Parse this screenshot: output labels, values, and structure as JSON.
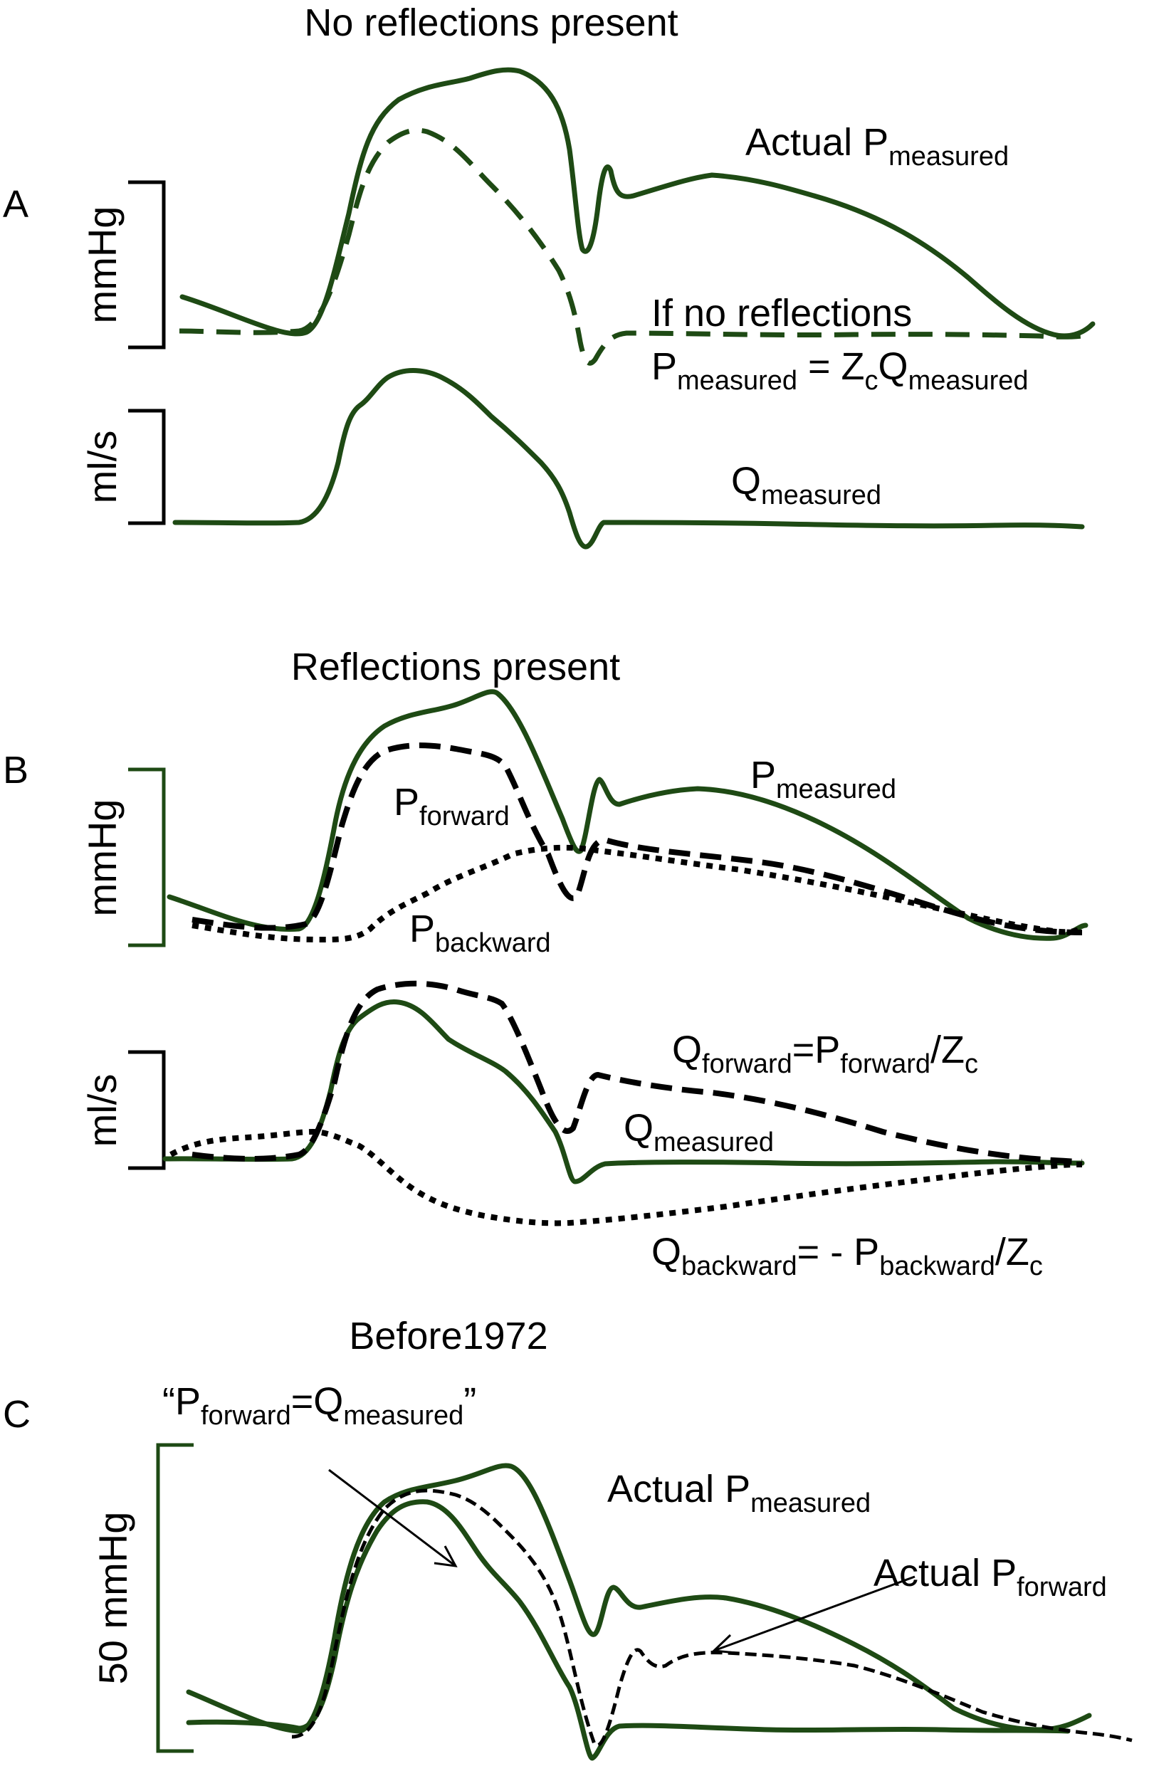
{
  "colors": {
    "measured": "#1e4a14",
    "dashed_model": "#000000",
    "text": "#000000",
    "background": "#ffffff"
  },
  "panelA": {
    "title": "No reflections present",
    "letter": "A",
    "pressure_scale": "mmHg",
    "flow_scale": "ml/s",
    "label_pressure": {
      "main": "Actual P",
      "sub": "measured"
    },
    "label_noreflect_line1": "If no reflections",
    "label_noreflect_line2": {
      "p": "P",
      "p_sub": "measured",
      "eq": " = Z",
      "z_sub": "c",
      "q": "Q",
      "q_sub": "measured"
    },
    "label_flow": {
      "main": "Q",
      "sub": "measured"
    }
  },
  "panelB": {
    "title": "Reflections present",
    "letter": "B",
    "pressure_scale": "mmHg",
    "flow_scale": "ml/s",
    "label_pforward": {
      "main": "P",
      "sub": "forward"
    },
    "label_pmeasured": {
      "main": "P",
      "sub": "measured"
    },
    "label_pbackward": {
      "main": "P",
      "sub": "backward"
    },
    "label_qforward": {
      "q": "Q",
      "q_sub": "forward",
      "eq": "=P",
      "p_sub": "forward",
      "div": "/Z",
      "z_sub": "c"
    },
    "label_qmeasured": {
      "main": "Q",
      "sub": "measured"
    },
    "label_qbackward": {
      "q": "Q",
      "q_sub": "backward",
      "eq": "= - P",
      "p_sub": "backward",
      "div": "/Z",
      "z_sub": "c"
    }
  },
  "panelC": {
    "title": "Before1972",
    "letter": "C",
    "scale": "50 mmHg",
    "label_quote": {
      "open": "“P",
      "p_sub": "forward",
      "eq": "=Q",
      "q_sub": "measured",
      "close": "”"
    },
    "label_actual_pmeasured": {
      "main": "Actual P",
      "sub": "measured"
    },
    "label_actual_pforward": {
      "main": "Actual P",
      "sub": "forward"
    }
  }
}
